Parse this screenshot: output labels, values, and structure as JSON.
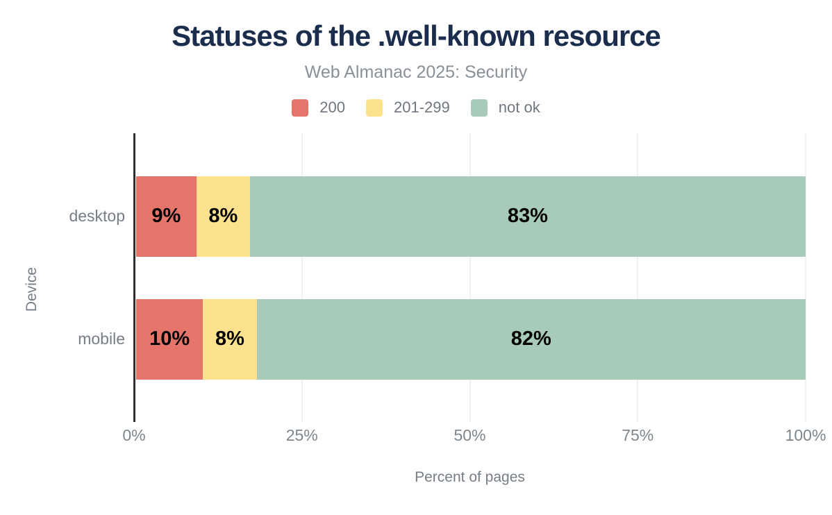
{
  "chart_data": {
    "type": "bar",
    "orientation": "horizontal",
    "stacked": true,
    "title": "Statuses of the .well-known resource",
    "subtitle": "Web Almanac 2025: Security",
    "categories": [
      "desktop",
      "mobile"
    ],
    "series": [
      {
        "name": "200",
        "color": "#e5756b",
        "values": [
          9,
          10
        ]
      },
      {
        "name": "201-299",
        "color": "#fce18f",
        "values": [
          8,
          8
        ]
      },
      {
        "name": "not ok",
        "color": "#a7cbb8",
        "values": [
          83,
          82
        ]
      }
    ],
    "value_suffix": "%",
    "data_labels": true,
    "xlabel": "Percent of pages",
    "ylabel": "Device",
    "xlim": [
      0,
      100
    ],
    "x_ticks": [
      {
        "value": 0,
        "label": "0%"
      },
      {
        "value": 25,
        "label": "25%"
      },
      {
        "value": 50,
        "label": "50%"
      },
      {
        "value": 75,
        "label": "75%"
      },
      {
        "value": 100,
        "label": "100%"
      }
    ],
    "grid": true,
    "legend_position": "top"
  },
  "colors": {
    "background": "#ffffff",
    "title": "#1b2d4d",
    "subtitle": "#8a9097",
    "axis_line": "#2f2f2f",
    "gridline": "#f0f0f1",
    "axis_text": "#767d85",
    "data_label": "#000000"
  }
}
